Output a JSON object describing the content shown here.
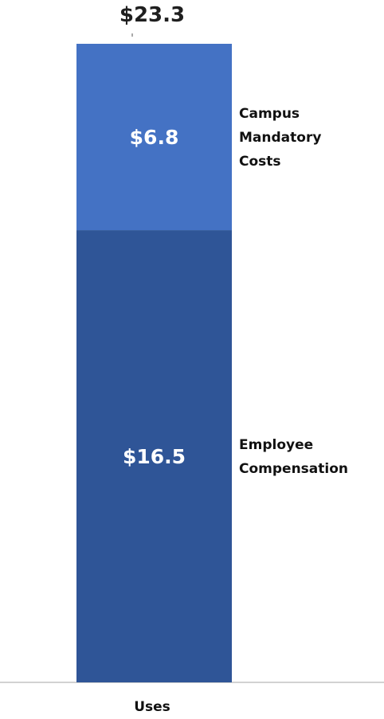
{
  "chart_data": {
    "type": "bar",
    "stacked": true,
    "categories": [
      "Uses"
    ],
    "series": [
      {
        "name": "Employee Compensation",
        "values": [
          16.5
        ],
        "value_label": "$16.5",
        "color": "#2f5597"
      },
      {
        "name": "Campus Mandatory Costs",
        "values": [
          6.8
        ],
        "value_label": "$6.8",
        "color": "#4472c4"
      }
    ],
    "total": 23.3,
    "total_label": "$23.3",
    "series_label_lines": [
      [
        "Employee",
        "Compensation"
      ],
      [
        "Campus",
        "Mandatory",
        "Costs"
      ]
    ],
    "title": "",
    "xlabel": "",
    "ylabel": "",
    "ylim": [
      0,
      23.3
    ],
    "grid": false,
    "legend": "inline-right"
  },
  "colors": {
    "axis": "#a6a6a6",
    "background": "#ffffff"
  }
}
